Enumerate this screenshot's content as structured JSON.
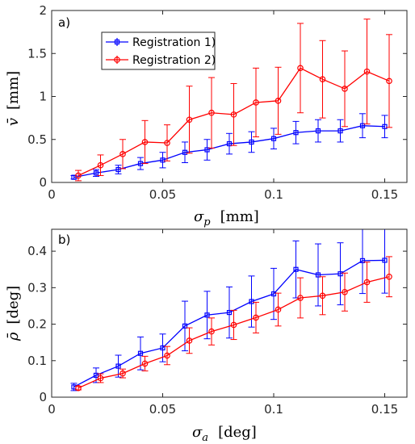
{
  "chart_data": [
    {
      "type": "line",
      "panel_label": "a)",
      "xlabel_symbol": "σ",
      "xlabel_sub": "p",
      "xlabel_unit": "[mm]",
      "ylabel_symbol": "v̄",
      "ylabel_unit": "[mm]",
      "xlim": [
        0,
        0.16
      ],
      "ylim": [
        0,
        2
      ],
      "xticks": [
        0,
        0.05,
        0.1,
        0.15
      ],
      "xtick_labels": [
        "0",
        "0.05",
        "0.1",
        "0.15"
      ],
      "yticks": [
        0,
        0.5,
        1,
        1.5,
        2
      ],
      "ytick_labels": [
        "0",
        "0.5",
        "1",
        "1.5",
        "2"
      ],
      "grid": false,
      "legend": {
        "placement": "top-left",
        "show": true
      },
      "series": [
        {
          "name": "Registration 1)",
          "color": "#0000ff",
          "marker": "square",
          "x": [
            0.01,
            0.02,
            0.03,
            0.04,
            0.05,
            0.06,
            0.07,
            0.08,
            0.09,
            0.1,
            0.11,
            0.12,
            0.13,
            0.14,
            0.15
          ],
          "y": [
            0.06,
            0.11,
            0.15,
            0.22,
            0.26,
            0.35,
            0.38,
            0.45,
            0.47,
            0.51,
            0.58,
            0.6,
            0.6,
            0.66,
            0.65
          ],
          "err": [
            0.02,
            0.04,
            0.05,
            0.07,
            0.09,
            0.12,
            0.12,
            0.12,
            0.12,
            0.12,
            0.13,
            0.13,
            0.13,
            0.14,
            0.13
          ]
        },
        {
          "name": "Registration 2)",
          "color": "#ff0000",
          "marker": "circle",
          "x": [
            0.012,
            0.022,
            0.032,
            0.042,
            0.052,
            0.062,
            0.072,
            0.082,
            0.092,
            0.102,
            0.112,
            0.122,
            0.132,
            0.142,
            0.152
          ],
          "y": [
            0.08,
            0.2,
            0.33,
            0.47,
            0.46,
            0.73,
            0.81,
            0.79,
            0.93,
            0.95,
            1.33,
            1.2,
            1.09,
            1.29,
            1.18
          ],
          "err": [
            0.06,
            0.12,
            0.17,
            0.25,
            0.21,
            0.39,
            0.41,
            0.36,
            0.4,
            0.39,
            0.52,
            0.45,
            0.44,
            0.61,
            0.54
          ]
        }
      ]
    },
    {
      "type": "line",
      "panel_label": "b)",
      "xlabel_symbol": "σ",
      "xlabel_sub": "a",
      "xlabel_unit": "[deg]",
      "ylabel_symbol": "ρ̄",
      "ylabel_unit": "[deg]",
      "xlim": [
        0,
        0.16
      ],
      "ylim": [
        0,
        0.46
      ],
      "xticks": [
        0,
        0.05,
        0.1,
        0.15
      ],
      "xtick_labels": [
        "0",
        "0.05",
        "0.1",
        "0.15"
      ],
      "yticks": [
        0,
        0.1,
        0.2,
        0.3,
        0.4
      ],
      "ytick_labels": [
        "0",
        "0.1",
        "0.2",
        "0.3",
        "0.4"
      ],
      "grid": false,
      "series": [
        {
          "name": "Registration 1)",
          "color": "#0000ff",
          "marker": "square",
          "x": [
            0.01,
            0.02,
            0.03,
            0.04,
            0.05,
            0.06,
            0.07,
            0.08,
            0.09,
            0.1,
            0.11,
            0.12,
            0.13,
            0.14,
            0.15
          ],
          "y": [
            0.028,
            0.06,
            0.085,
            0.12,
            0.135,
            0.195,
            0.225,
            0.232,
            0.262,
            0.283,
            0.35,
            0.335,
            0.338,
            0.374,
            0.375
          ],
          "err": [
            0.01,
            0.02,
            0.03,
            0.045,
            0.038,
            0.068,
            0.065,
            0.07,
            0.07,
            0.07,
            0.078,
            0.085,
            0.085,
            0.09,
            0.09
          ]
        },
        {
          "name": "Registration 2)",
          "color": "#ff0000",
          "marker": "circle",
          "x": [
            0.012,
            0.022,
            0.032,
            0.042,
            0.052,
            0.062,
            0.072,
            0.082,
            0.092,
            0.102,
            0.112,
            0.122,
            0.132,
            0.142,
            0.152
          ],
          "y": [
            0.025,
            0.052,
            0.065,
            0.092,
            0.114,
            0.155,
            0.18,
            0.198,
            0.218,
            0.24,
            0.272,
            0.278,
            0.288,
            0.315,
            0.33
          ],
          "err": [
            0.005,
            0.012,
            0.012,
            0.02,
            0.025,
            0.035,
            0.037,
            0.04,
            0.042,
            0.045,
            0.055,
            0.052,
            0.052,
            0.055,
            0.055
          ]
        }
      ]
    }
  ]
}
